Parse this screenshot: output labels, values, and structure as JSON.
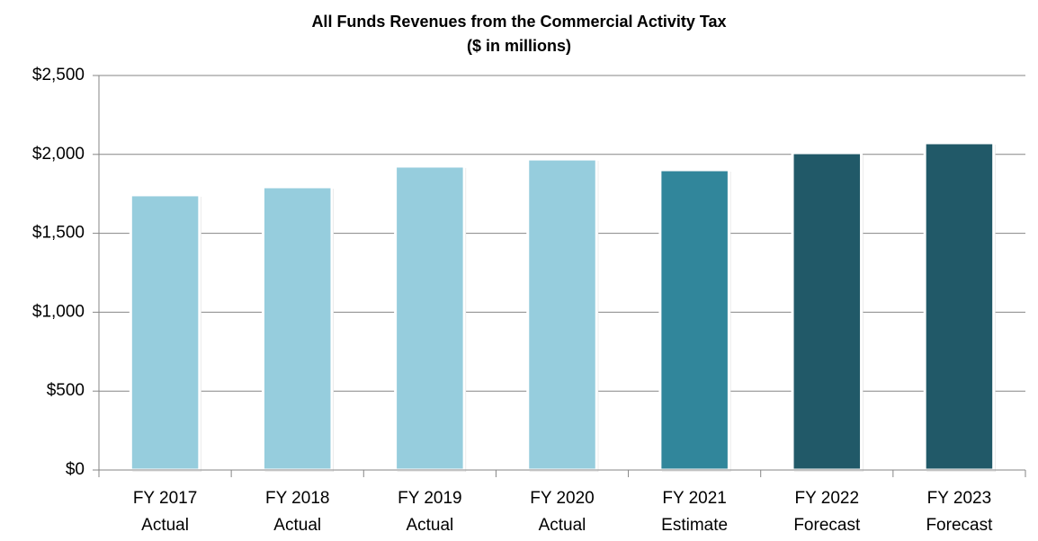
{
  "chart_data": {
    "type": "bar",
    "title": [
      "All Funds Revenues from the Commercial Activity Tax",
      "($ in millions)"
    ],
    "categories": [
      [
        "FY 2017",
        "Actual"
      ],
      [
        "FY 2018",
        "Actual"
      ],
      [
        "FY 2019",
        "Actual"
      ],
      [
        "FY 2020",
        "Actual"
      ],
      [
        "FY 2021",
        "Estimate"
      ],
      [
        "FY 2022",
        "Forecast"
      ],
      [
        "FY 2023",
        "Forecast"
      ]
    ],
    "values": [
      1743,
      1794,
      1925,
      1970,
      1902,
      2010,
      2073
    ],
    "colors": [
      "#96cddd",
      "#96cddd",
      "#96cddd",
      "#96cddd",
      "#31869b",
      "#215968",
      "#215968"
    ],
    "ylim": [
      0,
      2500
    ],
    "yticks": [
      {
        "value": 0,
        "label": "$0"
      },
      {
        "value": 500,
        "label": "$500"
      },
      {
        "value": 1000,
        "label": "$1,000"
      },
      {
        "value": 1500,
        "label": "$1,500"
      },
      {
        "value": 2000,
        "label": "$2,000"
      },
      {
        "value": 2500,
        "label": "$2,500"
      }
    ],
    "grid": true
  }
}
